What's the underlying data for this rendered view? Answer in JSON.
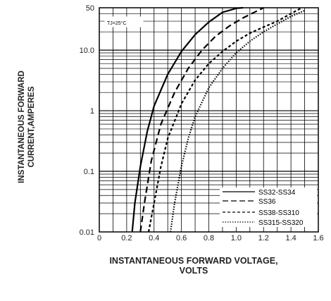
{
  "chart_data": {
    "type": "line",
    "title": "",
    "condition": "TJ=25°C",
    "ylabel_lines": [
      "INSTANTANEOUS FORWARD",
      "CURRENT,AMPERES"
    ],
    "xlabel_lines": [
      "INSTANTANEOUS FORWARD VOLTAGE,",
      "VOLTS"
    ],
    "x_range": [
      0,
      1.6
    ],
    "x_ticks": [
      {
        "v": 0,
        "label": "0"
      },
      {
        "v": 0.2,
        "label": "0.2"
      },
      {
        "v": 0.4,
        "label": "0.4"
      },
      {
        "v": 0.6,
        "label": "0.6"
      },
      {
        "v": 0.8,
        "label": "0.8"
      },
      {
        "v": 1.0,
        "label": "1.0"
      },
      {
        "v": 1.2,
        "label": "1.2"
      },
      {
        "v": 1.4,
        "label": "1.4"
      },
      {
        "v": 1.6,
        "label": "1.6"
      }
    ],
    "y_scale": "log",
    "y_range": [
      0.01,
      50
    ],
    "y_ticks": [
      {
        "v": 0.01,
        "label": "0.01"
      },
      {
        "v": 0.1,
        "label": "0.1"
      },
      {
        "v": 1,
        "label": "1"
      },
      {
        "v": 10,
        "label": "10.0"
      },
      {
        "v": 50,
        "label": "50"
      }
    ],
    "grid": true,
    "legend_position": "bottom-right",
    "series": [
      {
        "name": "SS32-SS34",
        "dash": "solid",
        "x": [
          0.24,
          0.26,
          0.3,
          0.35,
          0.4,
          0.5,
          0.6,
          0.7,
          0.8,
          0.9,
          1.0,
          1.05
        ],
        "y": [
          0.01,
          0.03,
          0.12,
          0.45,
          1.2,
          4.0,
          9.5,
          18,
          29,
          42,
          49,
          50
        ]
      },
      {
        "name": "SS36",
        "dash": "dash",
        "x": [
          0.3,
          0.33,
          0.38,
          0.45,
          0.55,
          0.65,
          0.75,
          0.85,
          0.95,
          1.05,
          1.15,
          1.2
        ],
        "y": [
          0.01,
          0.03,
          0.15,
          0.6,
          2.0,
          5.0,
          10,
          17,
          25,
          34,
          44,
          50
        ]
      },
      {
        "name": "SS38-SS310",
        "dash": "shortdash",
        "x": [
          0.36,
          0.4,
          0.45,
          0.5,
          0.6,
          0.7,
          0.8,
          0.9,
          1.0,
          1.1,
          1.2,
          1.3,
          1.4,
          1.48
        ],
        "y": [
          0.01,
          0.03,
          0.12,
          0.35,
          1.3,
          3.2,
          6.0,
          9.5,
          14,
          19,
          24,
          30,
          40,
          50
        ]
      },
      {
        "name": "SS315-SS320",
        "dash": "dot",
        "x": [
          0.52,
          0.55,
          0.6,
          0.65,
          0.7,
          0.8,
          0.9,
          1.0,
          1.1,
          1.2,
          1.3,
          1.4,
          1.5
        ],
        "y": [
          0.01,
          0.03,
          0.12,
          0.35,
          0.8,
          2.4,
          5.0,
          9.0,
          14,
          20,
          27,
          36,
          45
        ]
      }
    ]
  }
}
